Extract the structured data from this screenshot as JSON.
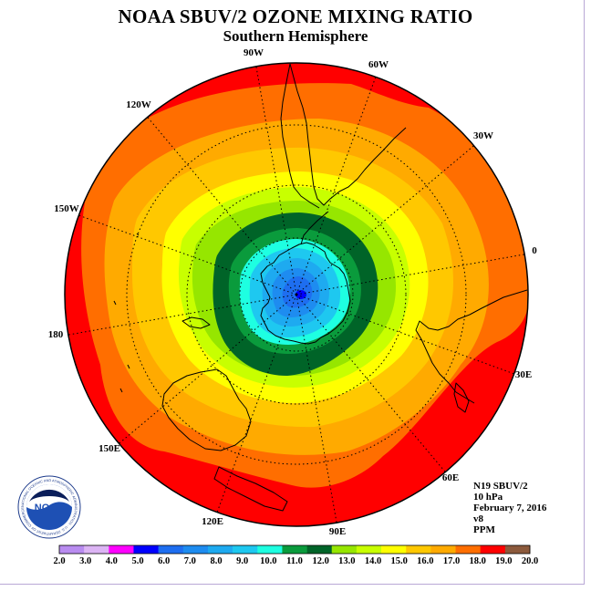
{
  "title": "NOAA SBUV/2 OZONE MIXING RATIO",
  "subtitle": "Southern Hemisphere",
  "meridian_labels": [
    "90W",
    "60W",
    "30W",
    "0",
    "30E",
    "60E",
    "90E",
    "120E",
    "150E",
    "180",
    "150W",
    "120W"
  ],
  "info": {
    "satellite": "N19 SBUV/2",
    "level": "10 hPa",
    "date": "February 7, 2016",
    "version": "v8",
    "units": "PPM"
  },
  "logo": {
    "text": "NOAA",
    "ring_text": "NATIONAL OCEANIC AND ATMOSPHERIC ADMINISTRATION · U.S. DEPARTMENT OF COMMERCE"
  },
  "colorbar": {
    "labels": [
      "2.0",
      "3.0",
      "4.0",
      "5.0",
      "6.0",
      "7.0",
      "8.0",
      "9.0",
      "10.0",
      "11.0",
      "12.0",
      "13.0",
      "14.0",
      "15.0",
      "16.0",
      "17.0",
      "18.0",
      "19.0",
      "20.0"
    ],
    "colors": [
      "#b98cf0",
      "#dcb4f4",
      "#ff00ff",
      "#0000ff",
      "#1e6ef0",
      "#1e8cf0",
      "#1eaaf0",
      "#1ec8f0",
      "#1effe1",
      "#0a9b3c",
      "#006428",
      "#96e600",
      "#c8ff00",
      "#ffff00",
      "#ffc800",
      "#ffaa00",
      "#ff6e00",
      "#ff0000",
      "#8c5a3c"
    ]
  },
  "chart_data": {
    "type": "heatmap",
    "title": "NOAA SBUV/2 OZONE MIXING RATIO",
    "subtitle": "Southern Hemisphere",
    "projection": "polar stereographic, south pole",
    "variable": "ozone mixing ratio",
    "units": "PPM",
    "pressure_level": "10 hPa",
    "scale_min": 2.0,
    "scale_max": 20.0,
    "scale_step": 1.0,
    "pattern": "minimum of about 5-6 ppm over Antarctica, increasing outward in concentric bands to 18-19 ppm at low latitudes",
    "minimum_value_approx": 5.5,
    "maximum_value_approx": 19
  }
}
